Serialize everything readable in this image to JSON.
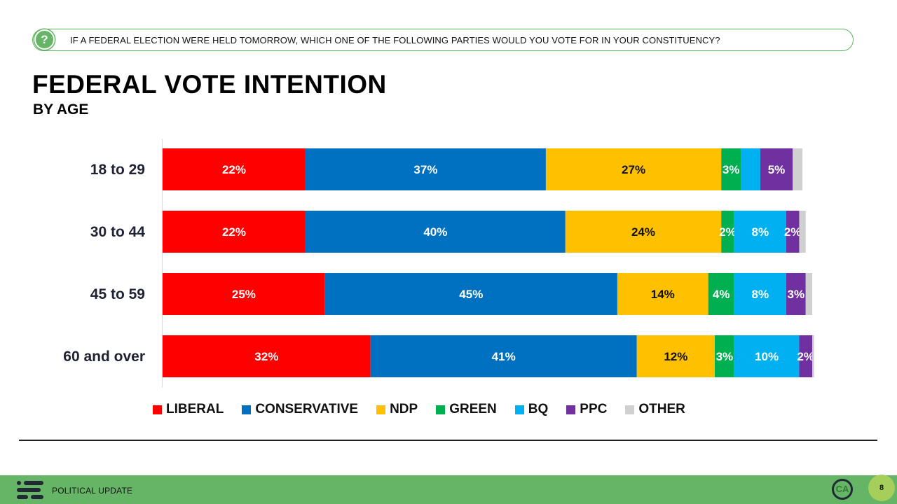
{
  "question": {
    "icon": "question-icon",
    "text": "IF A FEDERAL ELECTION WERE HELD TOMORROW, WHICH ONE OF THE FOLLOWING PARTIES WOULD YOU VOTE FOR IN YOUR CONSTITUENCY?"
  },
  "footer": {
    "label": "POLITICAL UPDATE",
    "page_number": "8",
    "ca_logo_text": "CA"
  },
  "colors": {
    "accent_green": "#66b466",
    "page_badge": "#a5cf5a"
  },
  "chart_data": {
    "type": "bar",
    "stacked": true,
    "orientation": "horizontal",
    "title": "FEDERAL VOTE INTENTION",
    "subtitle": "BY AGE",
    "categories": [
      "18 to 29",
      "30 to 44",
      "45 to 59",
      "60 and over"
    ],
    "series": [
      {
        "name": "LIBERAL",
        "color": "#ff0000",
        "values": [
          22,
          22,
          25,
          32
        ],
        "labels": [
          "22%",
          "22%",
          "25%",
          "32%"
        ]
      },
      {
        "name": "CONSERVATIVE",
        "color": "#0070c0",
        "values": [
          37,
          40,
          45,
          41
        ],
        "labels": [
          "37%",
          "40%",
          "45%",
          "41%"
        ]
      },
      {
        "name": "NDP",
        "color": "#ffc000",
        "values": [
          27,
          24,
          14,
          12
        ],
        "labels": [
          "27%",
          "24%",
          "14%",
          "12%"
        ]
      },
      {
        "name": "GREEN",
        "color": "#00b050",
        "values": [
          3,
          2,
          4,
          3
        ],
        "labels": [
          "3%",
          "2%",
          "4%",
          "3%"
        ]
      },
      {
        "name": "BQ",
        "color": "#00b0f0",
        "values": [
          3,
          8,
          8,
          10
        ],
        "labels": [
          "",
          "8%",
          "8%",
          "10%"
        ]
      },
      {
        "name": "PPC",
        "color": "#7030a0",
        "values": [
          5,
          2,
          3,
          2
        ],
        "labels": [
          "5%",
          "2%",
          "3%",
          "2%"
        ]
      },
      {
        "name": "OTHER",
        "color": "#d0d0d0",
        "values": [
          1.5,
          1,
          1,
          0.3
        ],
        "labels": [
          "",
          "",
          "",
          ""
        ]
      }
    ],
    "legend_position": "bottom",
    "grid": false
  }
}
